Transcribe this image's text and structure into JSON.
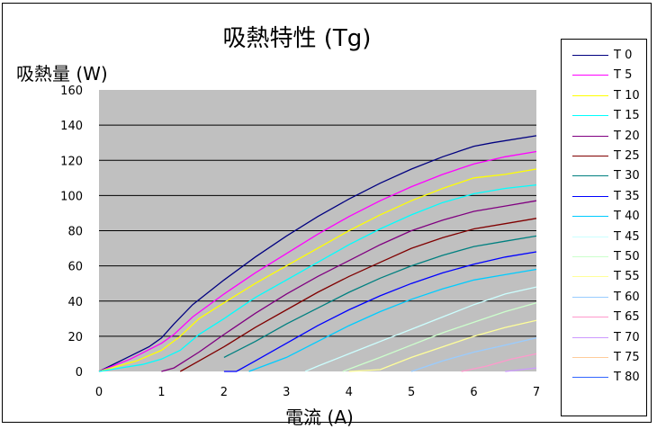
{
  "chart_data": {
    "type": "line",
    "title": "吸熱特性 (Tg)",
    "xlabel": "電流 (A)",
    "ylabel": "吸熱量 (W)",
    "xlim": [
      0,
      7
    ],
    "ylim": [
      0,
      160
    ],
    "xticks": [
      0,
      1,
      2,
      3,
      4,
      5,
      6,
      7
    ],
    "yticks": [
      0,
      20,
      40,
      60,
      80,
      100,
      120,
      140,
      160
    ],
    "grid": "horizontal",
    "plot_background": "#c0c0c0",
    "legend_position": "right",
    "series": [
      {
        "name": "T 0",
        "color": "#000080",
        "points": [
          [
            0,
            0
          ],
          [
            0.4,
            7
          ],
          [
            0.8,
            14
          ],
          [
            1,
            19
          ],
          [
            1.2,
            27
          ],
          [
            1.5,
            38
          ],
          [
            2,
            52
          ],
          [
            2.5,
            65
          ],
          [
            3,
            77
          ],
          [
            3.5,
            88
          ],
          [
            4,
            98
          ],
          [
            4.5,
            107
          ],
          [
            5,
            115
          ],
          [
            5.5,
            122
          ],
          [
            6,
            128
          ],
          [
            6.3,
            130
          ],
          [
            7,
            134
          ]
        ]
      },
      {
        "name": "T 5",
        "color": "#ff00ff",
        "points": [
          [
            0,
            0
          ],
          [
            0.5,
            7
          ],
          [
            1,
            16
          ],
          [
            1.2,
            21
          ],
          [
            1.5,
            31
          ],
          [
            2,
            44
          ],
          [
            2.5,
            56
          ],
          [
            3,
            67
          ],
          [
            3.5,
            78
          ],
          [
            4,
            88
          ],
          [
            4.5,
            97
          ],
          [
            5,
            105
          ],
          [
            5.5,
            112
          ],
          [
            6,
            118
          ],
          [
            6.5,
            122
          ],
          [
            7,
            125
          ]
        ]
      },
      {
        "name": "T 10",
        "color": "#ffff00",
        "points": [
          [
            0,
            0
          ],
          [
            0.6,
            6
          ],
          [
            1,
            12
          ],
          [
            1.3,
            20
          ],
          [
            1.6,
            30
          ],
          [
            2,
            39
          ],
          [
            2.5,
            50
          ],
          [
            3,
            60
          ],
          [
            3.5,
            70
          ],
          [
            4,
            80
          ],
          [
            4.5,
            89
          ],
          [
            5,
            97
          ],
          [
            5.5,
            104
          ],
          [
            6,
            110
          ],
          [
            6.5,
            112
          ],
          [
            7,
            115
          ]
        ]
      },
      {
        "name": "T 15",
        "color": "#00ffff",
        "points": [
          [
            0,
            0
          ],
          [
            0.7,
            4
          ],
          [
            1,
            7
          ],
          [
            1.3,
            12
          ],
          [
            1.6,
            21
          ],
          [
            2,
            30
          ],
          [
            2.5,
            42
          ],
          [
            3,
            52
          ],
          [
            3.5,
            62
          ],
          [
            4,
            72
          ],
          [
            4.5,
            81
          ],
          [
            5,
            89
          ],
          [
            5.5,
            96
          ],
          [
            6,
            101
          ],
          [
            6.5,
            104
          ],
          [
            7,
            106
          ]
        ]
      },
      {
        "name": "T 20",
        "color": "#800080",
        "points": [
          [
            1,
            0
          ],
          [
            1.2,
            2
          ],
          [
            1.6,
            11
          ],
          [
            2,
            21
          ],
          [
            2.5,
            33
          ],
          [
            3,
            44
          ],
          [
            3.5,
            54
          ],
          [
            4,
            63
          ],
          [
            4.5,
            72
          ],
          [
            5,
            80
          ],
          [
            5.5,
            86
          ],
          [
            6,
            91
          ],
          [
            6.5,
            94
          ],
          [
            7,
            97
          ]
        ]
      },
      {
        "name": "T 25",
        "color": "#800000",
        "points": [
          [
            1.3,
            0
          ],
          [
            1.6,
            6
          ],
          [
            2,
            14
          ],
          [
            2.5,
            25
          ],
          [
            3,
            35
          ],
          [
            3.5,
            45
          ],
          [
            4,
            54
          ],
          [
            4.5,
            62
          ],
          [
            5,
            70
          ],
          [
            5.5,
            76
          ],
          [
            6,
            81
          ],
          [
            6.5,
            84
          ],
          [
            7,
            87
          ]
        ]
      },
      {
        "name": "T 30",
        "color": "#008080",
        "points": [
          [
            2,
            8
          ],
          [
            2.5,
            17
          ],
          [
            3,
            27
          ],
          [
            3.5,
            36
          ],
          [
            4,
            45
          ],
          [
            4.5,
            53
          ],
          [
            5,
            60
          ],
          [
            5.5,
            66
          ],
          [
            6,
            71
          ],
          [
            6.5,
            74
          ],
          [
            7,
            77
          ]
        ]
      },
      {
        "name": "T 35",
        "color": "#0000ff",
        "points": [
          [
            2,
            0
          ],
          [
            2.2,
            0
          ],
          [
            2.5,
            6
          ],
          [
            3,
            16
          ],
          [
            3.5,
            26
          ],
          [
            4,
            35
          ],
          [
            4.5,
            43
          ],
          [
            5,
            50
          ],
          [
            5.5,
            56
          ],
          [
            6,
            61
          ],
          [
            6.5,
            65
          ],
          [
            7,
            68
          ]
        ]
      },
      {
        "name": "T 40",
        "color": "#00ccff",
        "points": [
          [
            2.4,
            0
          ],
          [
            3,
            8
          ],
          [
            3.5,
            17
          ],
          [
            4,
            26
          ],
          [
            4.5,
            34
          ],
          [
            5,
            41
          ],
          [
            5.5,
            47
          ],
          [
            6,
            52
          ],
          [
            6.5,
            55
          ],
          [
            7,
            58
          ]
        ]
      },
      {
        "name": "T 45",
        "color": "#ccffff",
        "points": [
          [
            3.3,
            0
          ],
          [
            3.5,
            3
          ],
          [
            4,
            10
          ],
          [
            4.5,
            17
          ],
          [
            5,
            24
          ],
          [
            5.5,
            31
          ],
          [
            6,
            38
          ],
          [
            6.5,
            44
          ],
          [
            7,
            48
          ]
        ]
      },
      {
        "name": "T 50",
        "color": "#ccffcc",
        "points": [
          [
            3.9,
            0
          ],
          [
            4.5,
            8
          ],
          [
            5,
            15
          ],
          [
            5.5,
            22
          ],
          [
            6,
            28
          ],
          [
            6.5,
            34
          ],
          [
            7,
            39
          ]
        ]
      },
      {
        "name": "T 55",
        "color": "#ffff99",
        "points": [
          [
            4,
            0
          ],
          [
            4.5,
            1
          ],
          [
            5,
            8
          ],
          [
            5.5,
            14
          ],
          [
            6,
            20
          ],
          [
            6.5,
            25
          ],
          [
            7,
            29
          ]
        ]
      },
      {
        "name": "T 60",
        "color": "#99ccff",
        "points": [
          [
            5,
            0
          ],
          [
            5.5,
            6
          ],
          [
            6,
            11
          ],
          [
            6.5,
            15
          ],
          [
            7,
            19
          ]
        ]
      },
      {
        "name": "T 65",
        "color": "#ff99cc",
        "points": [
          [
            5.8,
            0
          ],
          [
            6.2,
            3
          ],
          [
            6.6,
            7
          ],
          [
            7,
            10
          ]
        ]
      },
      {
        "name": "T 70",
        "color": "#cc99ff",
        "points": [
          [
            6.5,
            0
          ],
          [
            7,
            2
          ]
        ]
      },
      {
        "name": "T 75",
        "color": "#ffcc99",
        "points": []
      },
      {
        "name": "T 80",
        "color": "#3366ff",
        "points": []
      }
    ]
  }
}
